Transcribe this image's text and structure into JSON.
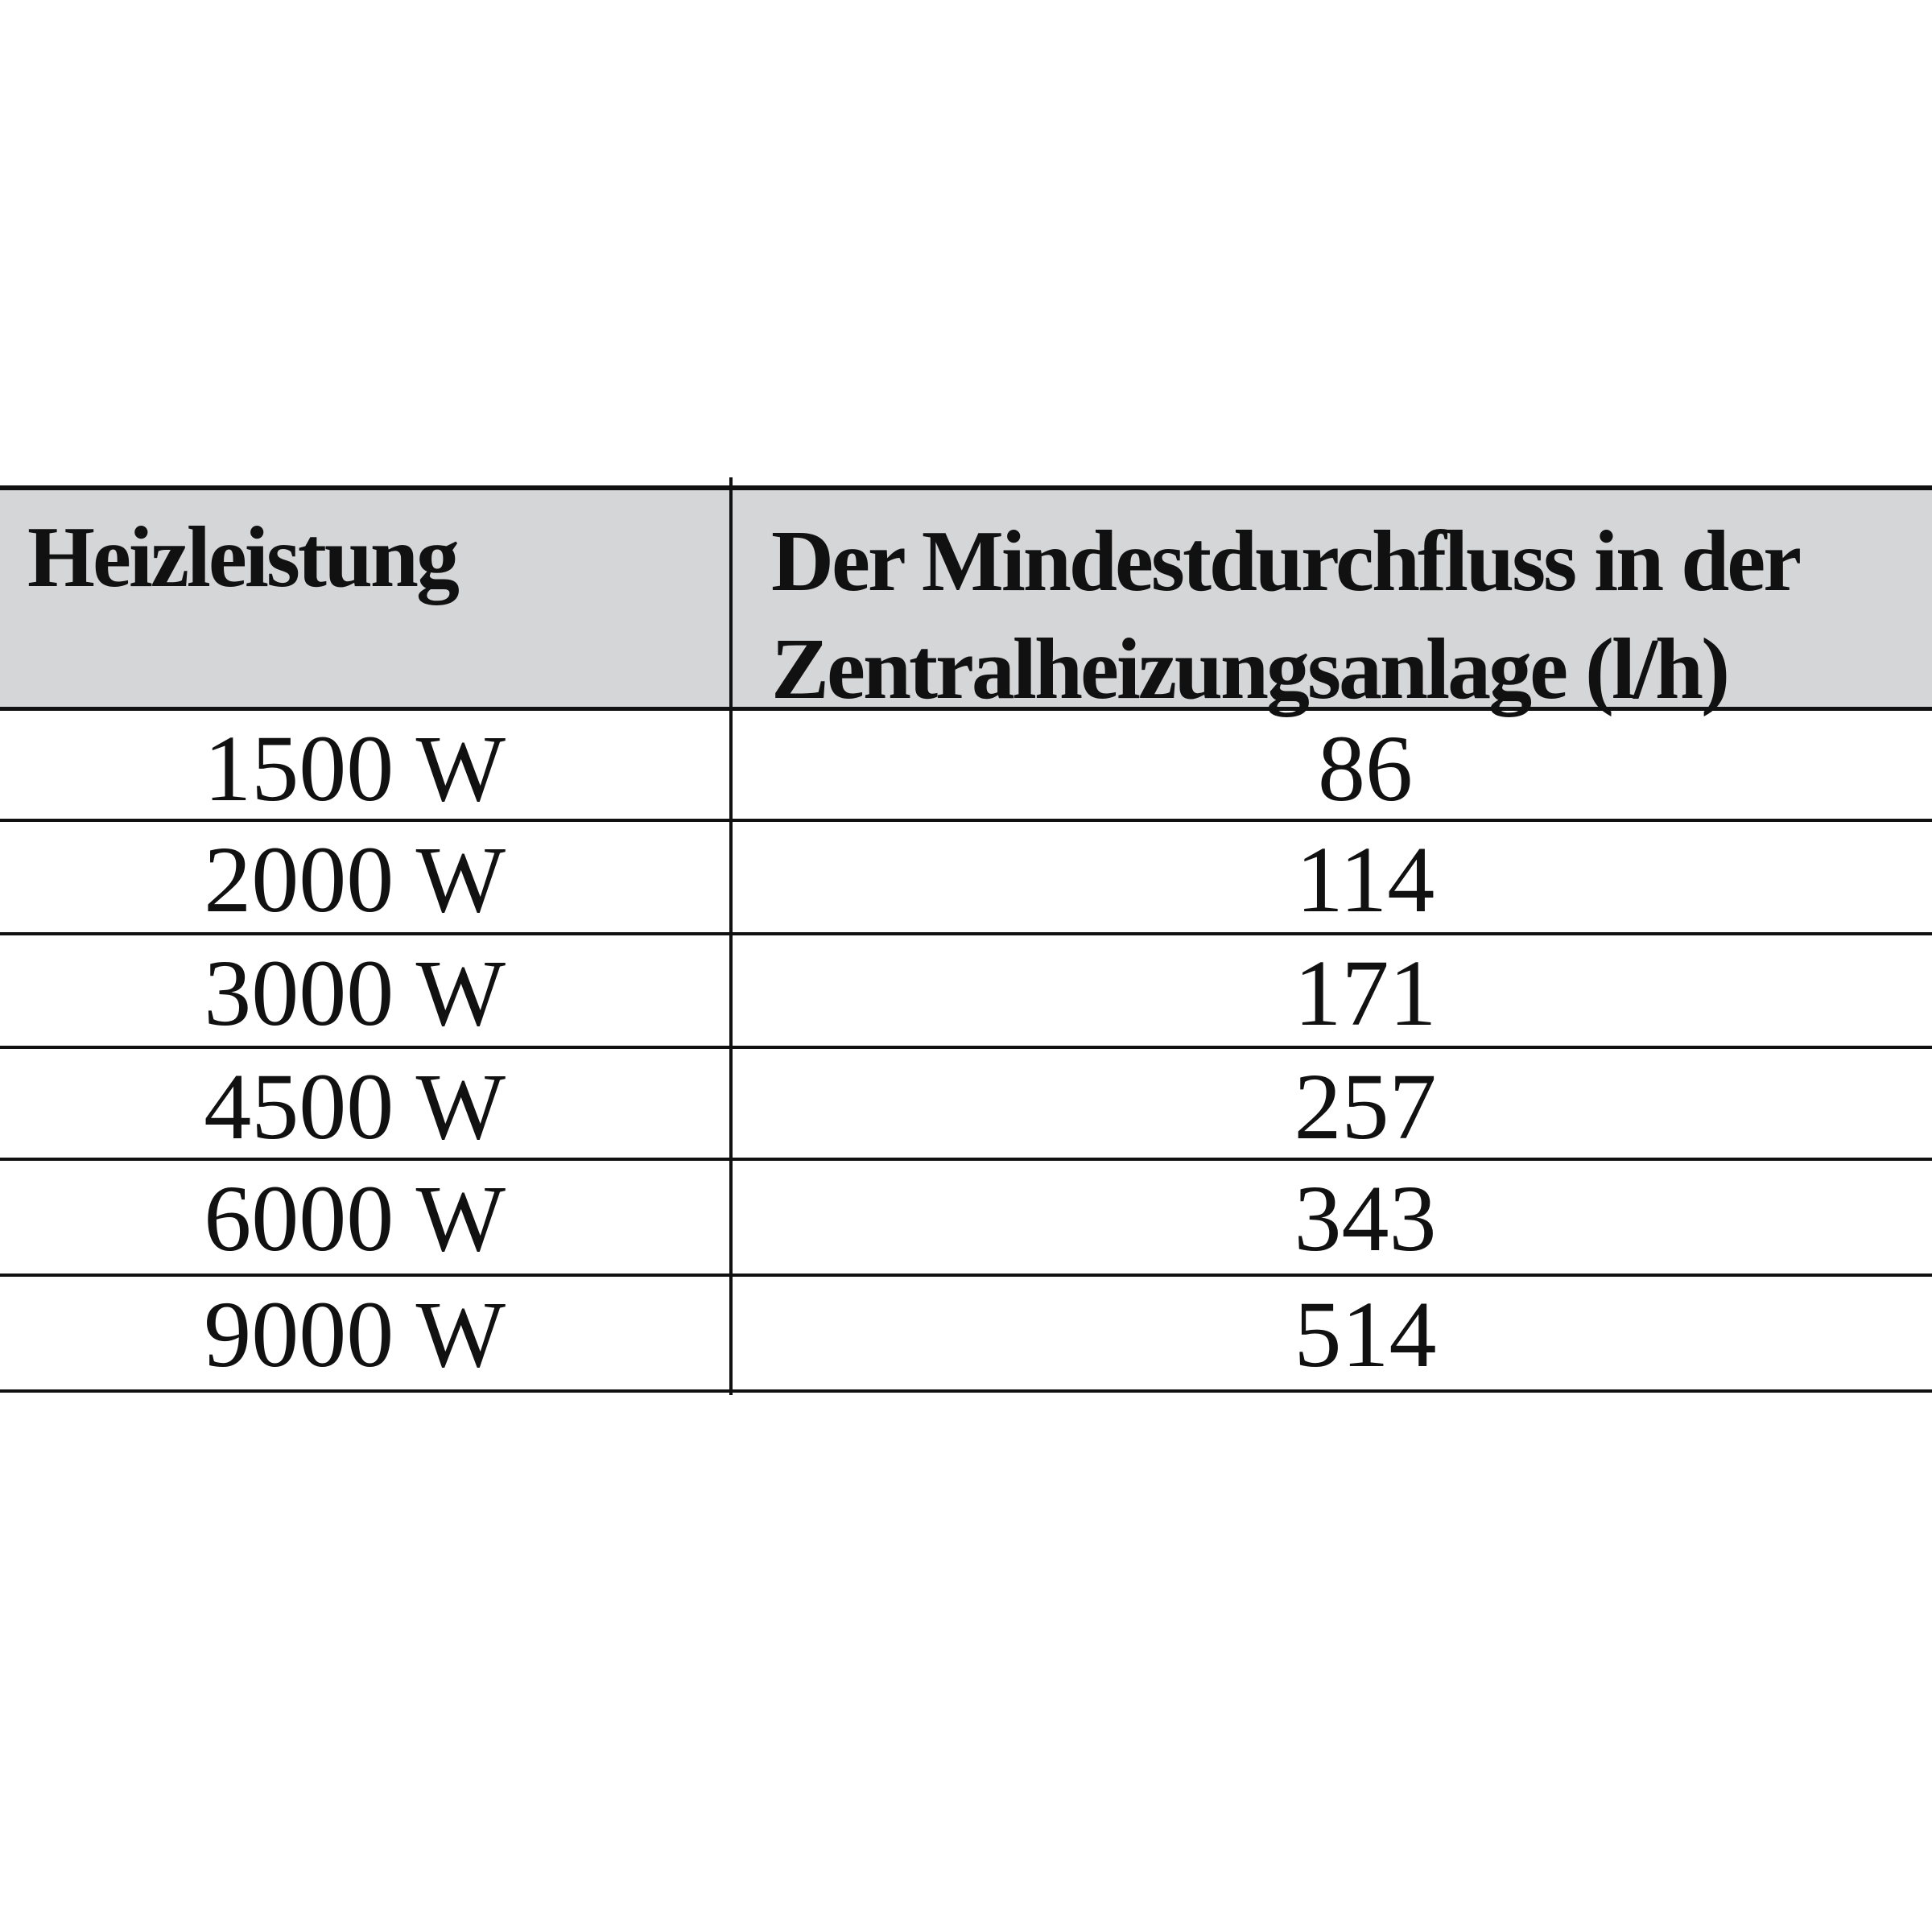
{
  "table": {
    "headers": [
      "Heizleistung",
      "Der Mindestdurchfluss in der Zentralheizungsanlage (l/h)"
    ],
    "rows": [
      [
        "1500 W",
        "86"
      ],
      [
        "2000 W",
        "114"
      ],
      [
        "3000 W",
        "171"
      ],
      [
        "4500 W",
        "257"
      ],
      [
        "6000 W",
        "343"
      ],
      [
        "9000 W",
        "514"
      ]
    ],
    "header_background": "#d5d6d7"
  }
}
